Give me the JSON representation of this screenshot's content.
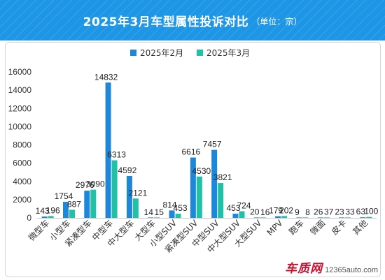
{
  "header": {
    "title": "2025年3月车型属性投诉对比",
    "subtitle": "（单位：宗）",
    "background": "#1e96e6"
  },
  "watermark": {
    "logo": "车质网",
    "url": "12365auto.com"
  },
  "chart_data": {
    "type": "bar",
    "categories": [
      "微型车",
      "小型车",
      "紧凑型车",
      "中型车",
      "中大型车",
      "大型车",
      "小型SUV",
      "紧凑型SUV",
      "中型SUV",
      "中大型SUV",
      "大型SUV",
      "MPV",
      "跑车",
      "微面",
      "皮卡",
      "其他"
    ],
    "series": [
      {
        "name": "2025年2月",
        "color": "#1e87d8",
        "values": [
          143,
          1754,
          2976,
          14832,
          4592,
          14,
          814,
          6616,
          7457,
          453,
          20,
          179,
          9,
          26,
          23,
          63
        ]
      },
      {
        "name": "2025年3月",
        "color": "#20c1a6",
        "values": [
          196,
          887,
          3090,
          6313,
          2121,
          15,
          453,
          4530,
          3821,
          724,
          16,
          202,
          8,
          37,
          33,
          100
        ]
      }
    ],
    "ylim": [
      0,
      16000
    ],
    "yticks": [
      0,
      2000,
      4000,
      6000,
      8000,
      10000,
      12000,
      14000,
      16000
    ],
    "grid": false,
    "legend_position": "top-center",
    "data_labels": true
  }
}
